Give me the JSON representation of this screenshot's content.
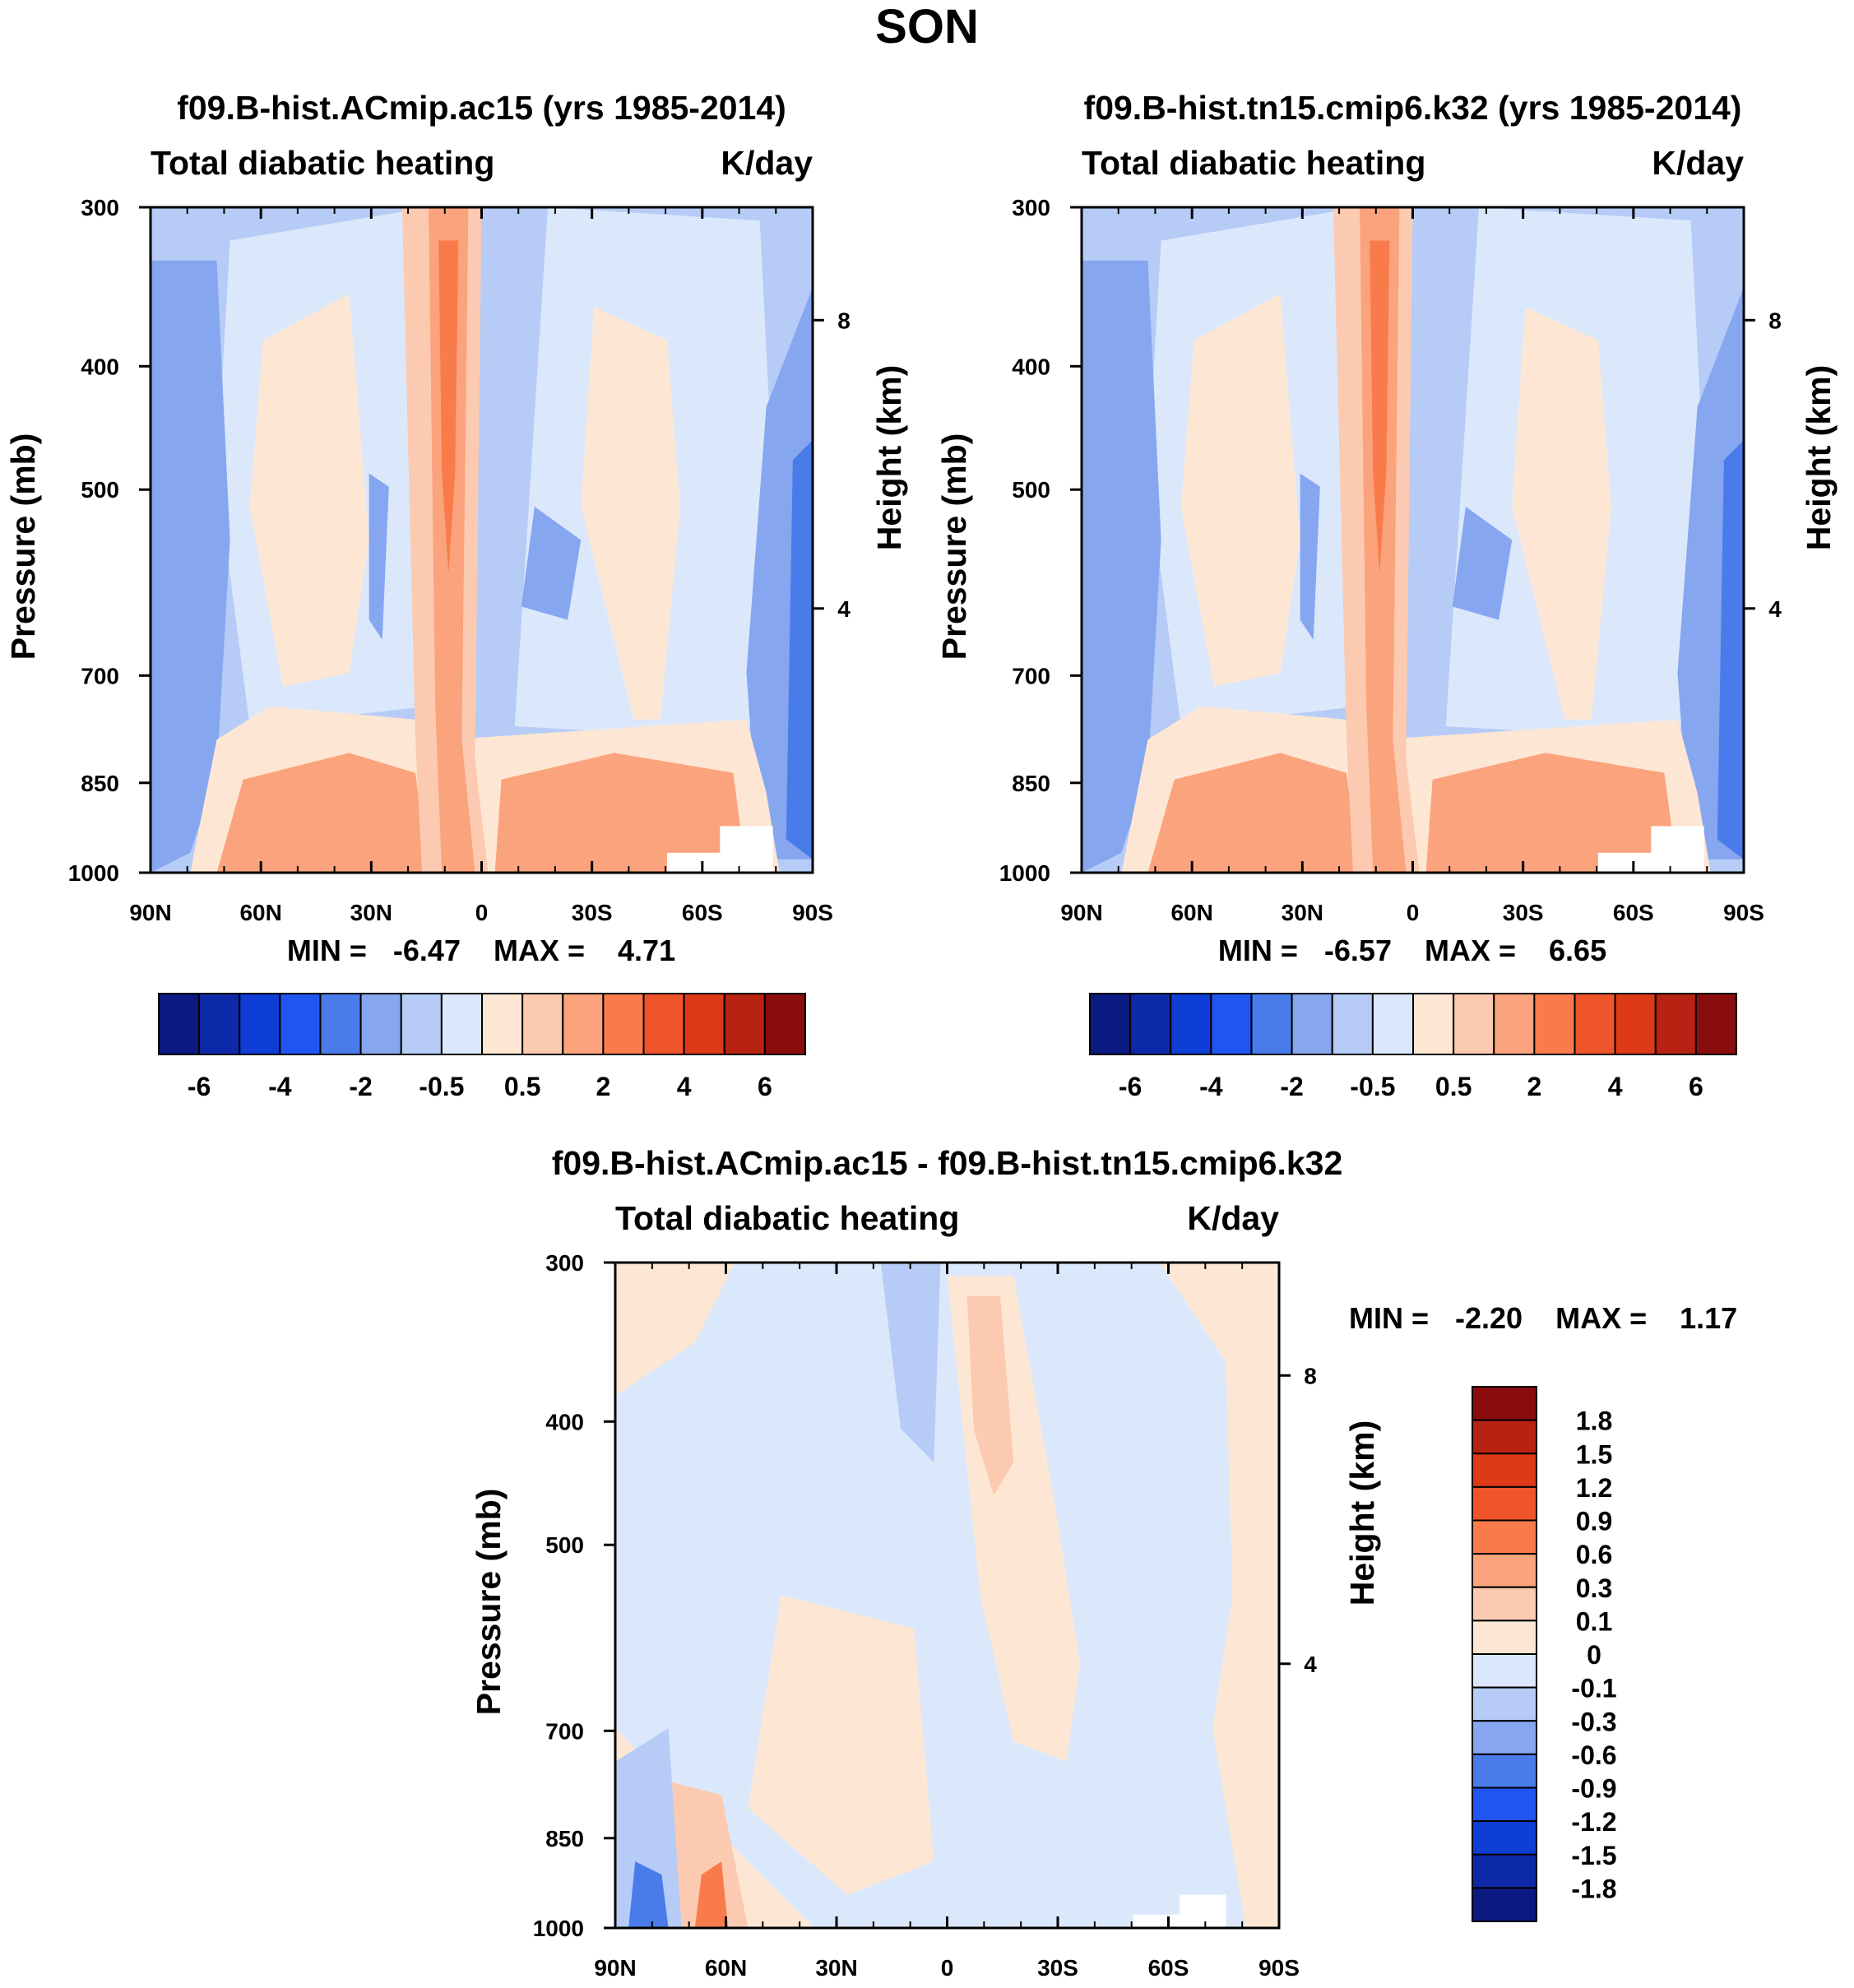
{
  "main_title": "SON",
  "chart_data": [
    {
      "type": "contour",
      "id": "panel_a",
      "title": "f09.B-hist.ACmip.ac15 (yrs 1985-2014)",
      "left_string": "Total diabatic heating",
      "right_string": "K/day",
      "ylabel": "Pressure (mb)",
      "ylabel_right": "Height (km)",
      "x_ticks": [
        "90N",
        "60N",
        "30N",
        "0",
        "30S",
        "60S",
        "90S"
      ],
      "y_ticks": [
        "300",
        "400",
        "500",
        "700",
        "850",
        "1000"
      ],
      "y_ticks_right": [
        "8",
        "4"
      ],
      "xlim": [
        90,
        -90
      ],
      "ylim": [
        1000,
        300
      ],
      "stats": {
        "min_label": "MIN =",
        "min": "-6.47",
        "max_label": "MAX =",
        "max": "4.71"
      },
      "colorbar": {
        "orientation": "horizontal",
        "labels": [
          "-6",
          "-4",
          "-2",
          "-0.5",
          "0.5",
          "2",
          "4",
          "6"
        ],
        "colors": [
          "#0b1a80",
          "#0c2aa8",
          "#0e3ed6",
          "#1f55f0",
          "#4a7bea",
          "#86a6f0",
          "#b6ccf7",
          "#dbe8fb",
          "#fde7d4",
          "#fccab0",
          "#fba37c",
          "#f97b4b",
          "#f0542a",
          "#dd3a18",
          "#b82212",
          "#8a0c0c"
        ]
      }
    },
    {
      "type": "contour",
      "id": "panel_b",
      "title": "f09.B-hist.tn15.cmip6.k32 (yrs 1985-2014)",
      "left_string": "Total diabatic heating",
      "right_string": "K/day",
      "ylabel": "Pressure (mb)",
      "ylabel_right": "Height (km)",
      "x_ticks": [
        "90N",
        "60N",
        "30N",
        "0",
        "30S",
        "60S",
        "90S"
      ],
      "y_ticks": [
        "300",
        "400",
        "500",
        "700",
        "850",
        "1000"
      ],
      "y_ticks_right": [
        "8",
        "4"
      ],
      "xlim": [
        90,
        -90
      ],
      "ylim": [
        1000,
        300
      ],
      "stats": {
        "min_label": "MIN =",
        "min": "-6.57",
        "max_label": "MAX =",
        "max": "6.65"
      },
      "colorbar": {
        "orientation": "horizontal",
        "labels": [
          "-6",
          "-4",
          "-2",
          "-0.5",
          "0.5",
          "2",
          "4",
          "6"
        ],
        "colors": [
          "#0b1a80",
          "#0c2aa8",
          "#0e3ed6",
          "#1f55f0",
          "#4a7bea",
          "#86a6f0",
          "#b6ccf7",
          "#dbe8fb",
          "#fde7d4",
          "#fccab0",
          "#fba37c",
          "#f97b4b",
          "#f0542a",
          "#dd3a18",
          "#b82212",
          "#8a0c0c"
        ]
      }
    },
    {
      "type": "contour",
      "id": "panel_diff",
      "title": "f09.B-hist.ACmip.ac15 - f09.B-hist.tn15.cmip6.k32",
      "left_string": "Total diabatic heating",
      "right_string": "K/day",
      "ylabel": "Pressure (mb)",
      "ylabel_right": "Height (km)",
      "x_ticks": [
        "90N",
        "60N",
        "30N",
        "0",
        "30S",
        "60S",
        "90S"
      ],
      "y_ticks": [
        "300",
        "400",
        "500",
        "700",
        "850",
        "1000"
      ],
      "y_ticks_right": [
        "8",
        "4"
      ],
      "xlim": [
        90,
        -90
      ],
      "ylim": [
        1000,
        300
      ],
      "stats": {
        "min_label": "MIN =",
        "min": "-2.20",
        "max_label": "MAX =",
        "max": "1.17"
      },
      "colorbar": {
        "orientation": "vertical",
        "labels": [
          "1.8",
          "1.5",
          "1.2",
          "0.9",
          "0.6",
          "0.3",
          "0.1",
          "0",
          "-0.1",
          "-0.3",
          "-0.6",
          "-0.9",
          "-1.2",
          "-1.5",
          "-1.8"
        ],
        "colors": [
          "#8a0c0c",
          "#b82212",
          "#dd3a18",
          "#f0542a",
          "#f97b4b",
          "#fba37c",
          "#fccab0",
          "#fde7d4",
          "#dbe8fb",
          "#b6ccf7",
          "#86a6f0",
          "#4a7bea",
          "#1f55f0",
          "#0e3ed6",
          "#0c2aa8",
          "#0b1a80"
        ]
      }
    }
  ]
}
